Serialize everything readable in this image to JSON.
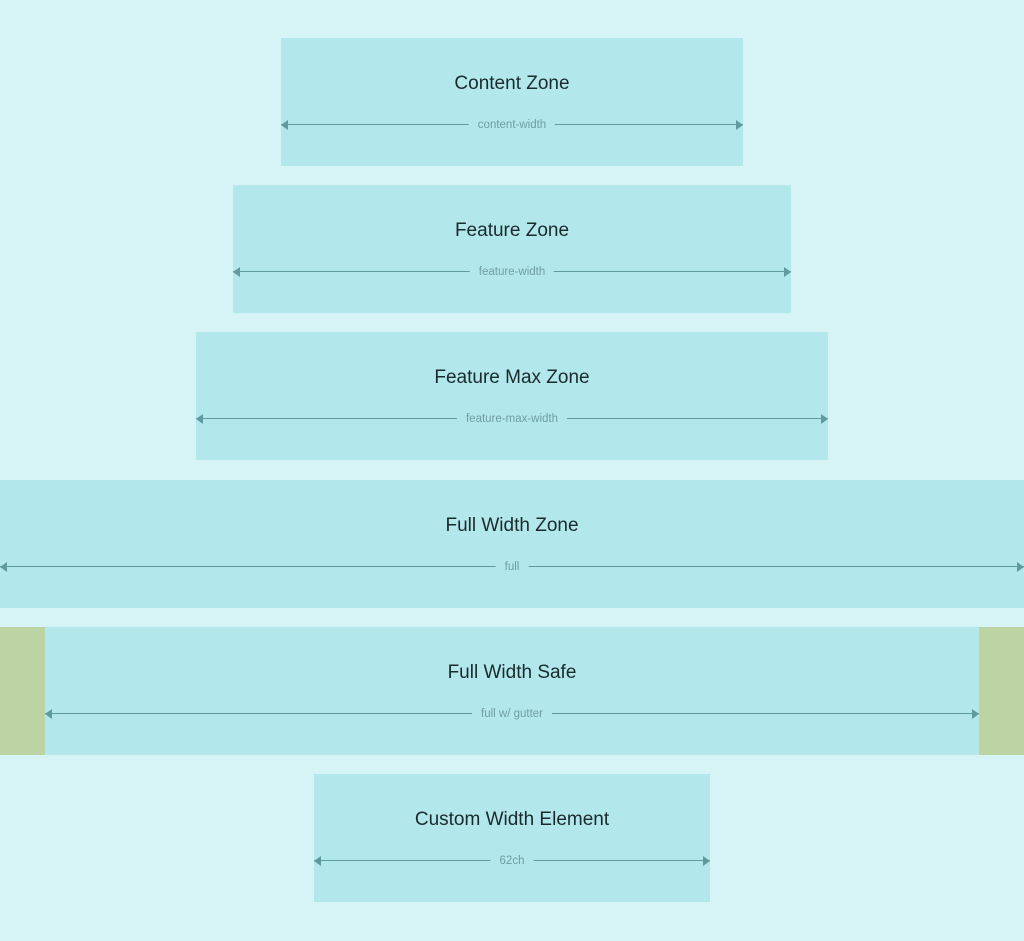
{
  "zones": [
    {
      "title": "Content Zone",
      "measure_label": "content-width"
    },
    {
      "title": "Feature Zone",
      "measure_label": "feature-width"
    },
    {
      "title": "Feature Max Zone",
      "measure_label": "feature-max-width"
    },
    {
      "title": "Full Width Zone",
      "measure_label": "full"
    },
    {
      "title": "Full Width Safe",
      "measure_label": "full w/ gutter"
    },
    {
      "title": "Custom Width Element",
      "measure_label": "62ch"
    }
  ],
  "colors": {
    "background": "#d6f3f6",
    "zone_fill": "#b2e7eb",
    "gutter_fill": "#bcd4a4",
    "measure_line": "#5f9a9f",
    "title_text": "#1a2b2d",
    "measure_text": "#6f9ea2"
  }
}
